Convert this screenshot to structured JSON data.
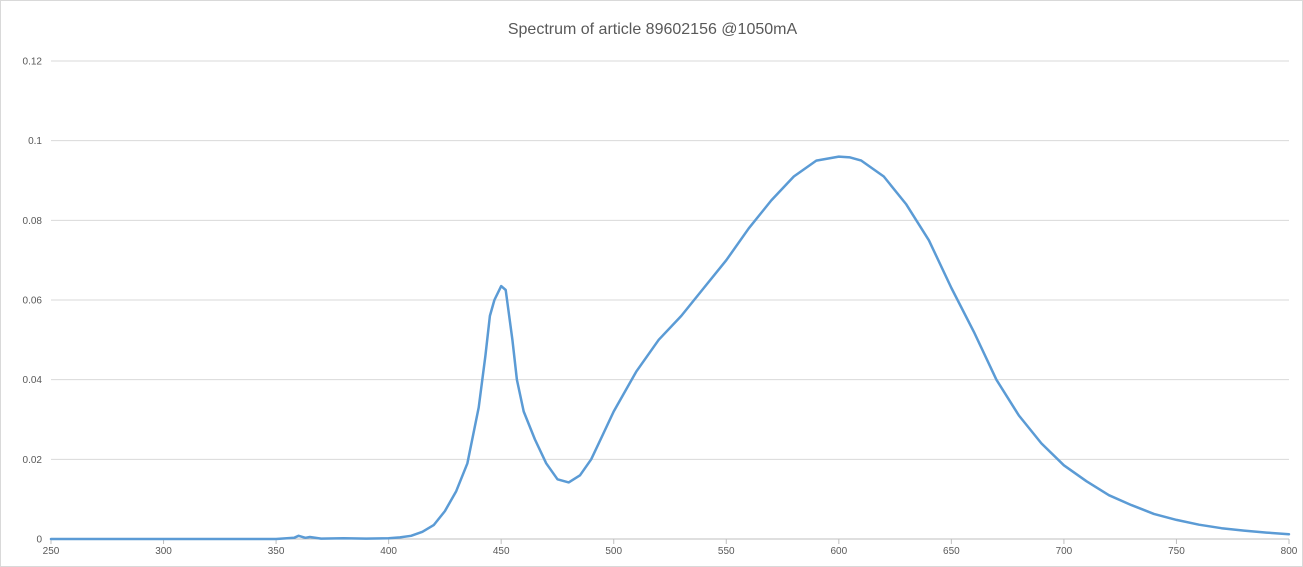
{
  "chart_data": {
    "type": "line",
    "title": "Spectrum of article 89602156   @1050mA",
    "xlabel": "",
    "ylabel": "",
    "xlim": [
      250,
      800
    ],
    "ylim": [
      0,
      0.12
    ],
    "x_ticks": [
      250,
      300,
      350,
      400,
      450,
      500,
      550,
      600,
      650,
      700,
      750,
      800
    ],
    "y_ticks": [
      0,
      0.02,
      0.04,
      0.06,
      0.08,
      0.1,
      0.12
    ],
    "grid": "horizontal",
    "legend": "none",
    "series_color": "#5b9bd5",
    "series": [
      {
        "x": [
          250,
          300,
          350,
          358,
          360,
          363,
          365,
          370,
          380,
          390,
          400,
          405,
          410,
          415,
          420,
          425,
          430,
          435,
          440,
          443,
          445,
          447,
          450,
          452,
          455,
          457,
          460,
          465,
          470,
          475,
          480,
          485,
          490,
          495,
          500,
          510,
          520,
          530,
          540,
          550,
          560,
          570,
          580,
          590,
          600,
          605,
          610,
          620,
          630,
          640,
          650,
          660,
          670,
          680,
          690,
          700,
          710,
          720,
          730,
          740,
          750,
          760,
          770,
          780,
          790,
          800
        ],
        "values": [
          0,
          0,
          0,
          0.0003,
          0.0008,
          0.0003,
          0.0005,
          0.0001,
          0.0002,
          0.0001,
          0.0002,
          0.0004,
          0.0008,
          0.0018,
          0.0035,
          0.007,
          0.012,
          0.019,
          0.033,
          0.046,
          0.056,
          0.06,
          0.0635,
          0.0625,
          0.05,
          0.04,
          0.032,
          0.025,
          0.019,
          0.015,
          0.0142,
          0.016,
          0.02,
          0.026,
          0.032,
          0.042,
          0.05,
          0.056,
          0.063,
          0.07,
          0.078,
          0.085,
          0.091,
          0.095,
          0.096,
          0.0958,
          0.095,
          0.091,
          0.084,
          0.075,
          0.063,
          0.052,
          0.04,
          0.031,
          0.024,
          0.0185,
          0.0145,
          0.011,
          0.0085,
          0.0063,
          0.0048,
          0.0036,
          0.0027,
          0.0021,
          0.0016,
          0.0012
        ]
      }
    ]
  }
}
